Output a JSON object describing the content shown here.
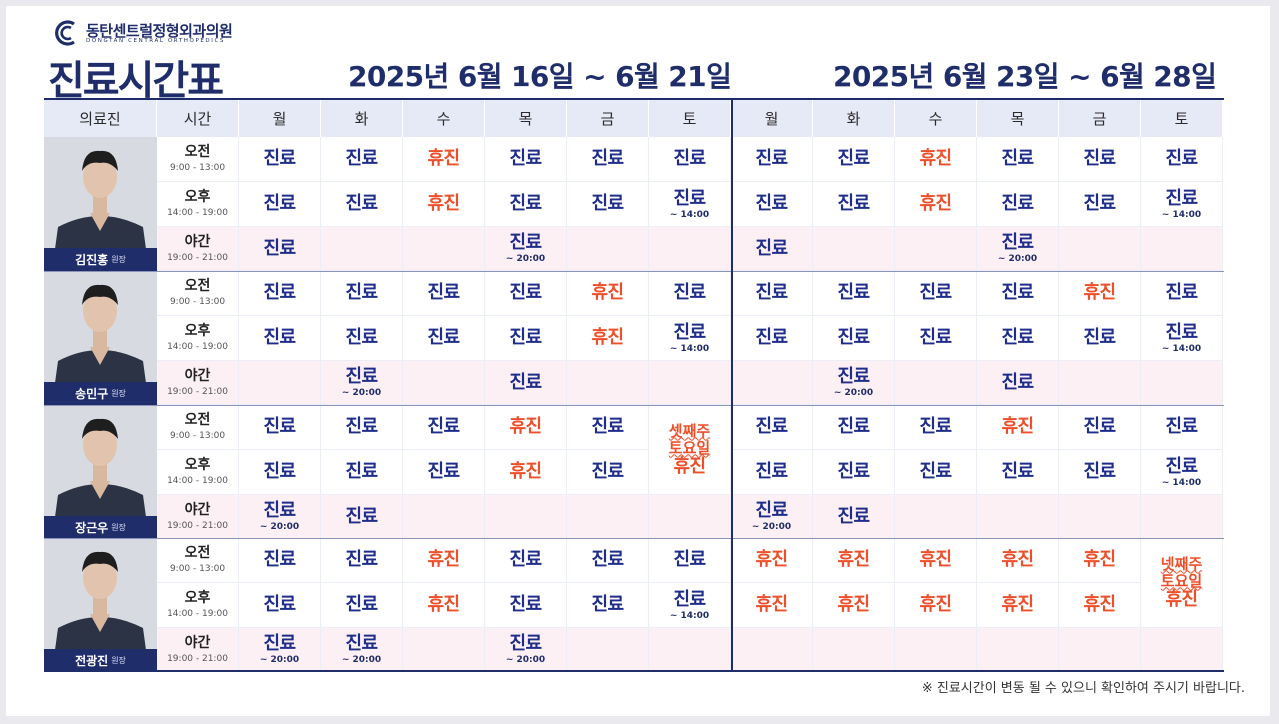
{
  "header": {
    "clinic_name": "동탄센트럴정형외과의원",
    "clinic_name_en": "DONGTAN CENTRAL ORTHOPEDICS",
    "title": "진료시간표",
    "week1_range": "2025년 6월 16일 ~ 6월 21일",
    "week2_range": "2025년 6월 23일 ~ 6월 28일"
  },
  "columns": {
    "doctor": "의료진",
    "time": "시간",
    "days": [
      "월",
      "화",
      "수",
      "목",
      "금",
      "토",
      "월",
      "화",
      "수",
      "목",
      "금",
      "토"
    ]
  },
  "slots": [
    {
      "label": "오전",
      "hours": "9:00 - 13:00"
    },
    {
      "label": "오후",
      "hours": "14:00 - 19:00"
    },
    {
      "label": "야간",
      "hours": "19:00 - 21:00"
    }
  ],
  "legend": {
    "open": "진료",
    "closed": "휴진"
  },
  "doctors": [
    {
      "name": "김진홍",
      "role": "원장",
      "schedule": [
        [
          {
            "s": "진료"
          },
          {
            "s": "진료"
          },
          {
            "s": "휴진"
          },
          {
            "s": "진료"
          },
          {
            "s": "진료"
          },
          {
            "s": "진료"
          },
          {
            "s": "진료"
          },
          {
            "s": "진료"
          },
          {
            "s": "휴진"
          },
          {
            "s": "진료"
          },
          {
            "s": "진료"
          },
          {
            "s": "진료"
          }
        ],
        [
          {
            "s": "진료"
          },
          {
            "s": "진료"
          },
          {
            "s": "휴진"
          },
          {
            "s": "진료"
          },
          {
            "s": "진료"
          },
          {
            "s": "진료",
            "n": "~ 14:00"
          },
          {
            "s": "진료"
          },
          {
            "s": "진료"
          },
          {
            "s": "휴진"
          },
          {
            "s": "진료"
          },
          {
            "s": "진료"
          },
          {
            "s": "진료",
            "n": "~ 14:00"
          }
        ],
        [
          {
            "s": "진료"
          },
          {},
          {},
          {
            "s": "진료",
            "n": "~ 20:00"
          },
          {},
          {},
          {
            "s": "진료"
          },
          {},
          {},
          {
            "s": "진료",
            "n": "~ 20:00"
          },
          {},
          {}
        ]
      ]
    },
    {
      "name": "송민구",
      "role": "원장",
      "schedule": [
        [
          {
            "s": "진료"
          },
          {
            "s": "진료"
          },
          {
            "s": "진료"
          },
          {
            "s": "진료"
          },
          {
            "s": "휴진"
          },
          {
            "s": "진료"
          },
          {
            "s": "진료"
          },
          {
            "s": "진료"
          },
          {
            "s": "진료"
          },
          {
            "s": "진료"
          },
          {
            "s": "휴진"
          },
          {
            "s": "진료"
          }
        ],
        [
          {
            "s": "진료"
          },
          {
            "s": "진료"
          },
          {
            "s": "진료"
          },
          {
            "s": "진료"
          },
          {
            "s": "휴진"
          },
          {
            "s": "진료",
            "n": "~ 14:00"
          },
          {
            "s": "진료"
          },
          {
            "s": "진료"
          },
          {
            "s": "진료"
          },
          {
            "s": "진료"
          },
          {
            "s": "진료"
          },
          {
            "s": "진료",
            "n": "~ 14:00"
          }
        ],
        [
          {},
          {
            "s": "진료",
            "n": "~ 20:00"
          },
          {},
          {
            "s": "진료"
          },
          {},
          {},
          {},
          {
            "s": "진료",
            "n": "~ 20:00"
          },
          {},
          {
            "s": "진료"
          },
          {},
          {}
        ]
      ]
    },
    {
      "name": "장근우",
      "role": "원장",
      "schedule": [
        [
          {
            "s": "진료"
          },
          {
            "s": "진료"
          },
          {
            "s": "진료"
          },
          {
            "s": "휴진"
          },
          {
            "s": "진료"
          },
          {
            "s": "셋째주 토요일 휴진",
            "span": 2
          },
          {
            "s": "진료"
          },
          {
            "s": "진료"
          },
          {
            "s": "진료"
          },
          {
            "s": "휴진"
          },
          {
            "s": "진료"
          },
          {
            "s": "진료"
          }
        ],
        [
          {
            "s": "진료"
          },
          {
            "s": "진료"
          },
          {
            "s": "진료"
          },
          {
            "s": "휴진"
          },
          {
            "s": "진료"
          },
          {
            "skip": true
          },
          {
            "s": "진료"
          },
          {
            "s": "진료"
          },
          {
            "s": "진료"
          },
          {
            "s": "진료"
          },
          {
            "s": "진료"
          },
          {
            "s": "진료",
            "n": "~ 14:00"
          }
        ],
        [
          {
            "s": "진료",
            "n": "~ 20:00"
          },
          {
            "s": "진료"
          },
          {},
          {},
          {},
          {},
          {
            "s": "진료",
            "n": "~ 20:00"
          },
          {
            "s": "진료"
          },
          {},
          {},
          {},
          {}
        ]
      ]
    },
    {
      "name": "전광진",
      "role": "원장",
      "schedule": [
        [
          {
            "s": "진료"
          },
          {
            "s": "진료"
          },
          {
            "s": "휴진"
          },
          {
            "s": "진료"
          },
          {
            "s": "진료"
          },
          {
            "s": "진료"
          },
          {
            "s": "휴진"
          },
          {
            "s": "휴진"
          },
          {
            "s": "휴진"
          },
          {
            "s": "휴진"
          },
          {
            "s": "휴진"
          },
          {
            "s": "넷째주 토요일 휴진",
            "span": 2
          }
        ],
        [
          {
            "s": "진료"
          },
          {
            "s": "진료"
          },
          {
            "s": "휴진"
          },
          {
            "s": "진료"
          },
          {
            "s": "진료"
          },
          {
            "s": "진료",
            "n": "~ 14:00"
          },
          {
            "s": "휴진"
          },
          {
            "s": "휴진"
          },
          {
            "s": "휴진"
          },
          {
            "s": "휴진"
          },
          {
            "s": "휴진"
          },
          {
            "skip": true
          }
        ],
        [
          {
            "s": "진료",
            "n": "~ 20:00"
          },
          {
            "s": "진료",
            "n": "~ 20:00"
          },
          {},
          {
            "s": "진료",
            "n": "~ 20:00"
          },
          {},
          {},
          {},
          {},
          {},
          {},
          {},
          {}
        ]
      ]
    }
  ],
  "footnote": "※ 진료시간이 변동 될 수 있으니 확인하여 주시기 바랍니다.",
  "colors": {
    "navy": "#1f2d6b",
    "open": "#1f2d8a",
    "closed": "#ee4f2a",
    "header_bg": "#e6e9f6",
    "night_bg": "#fdf0f4"
  }
}
